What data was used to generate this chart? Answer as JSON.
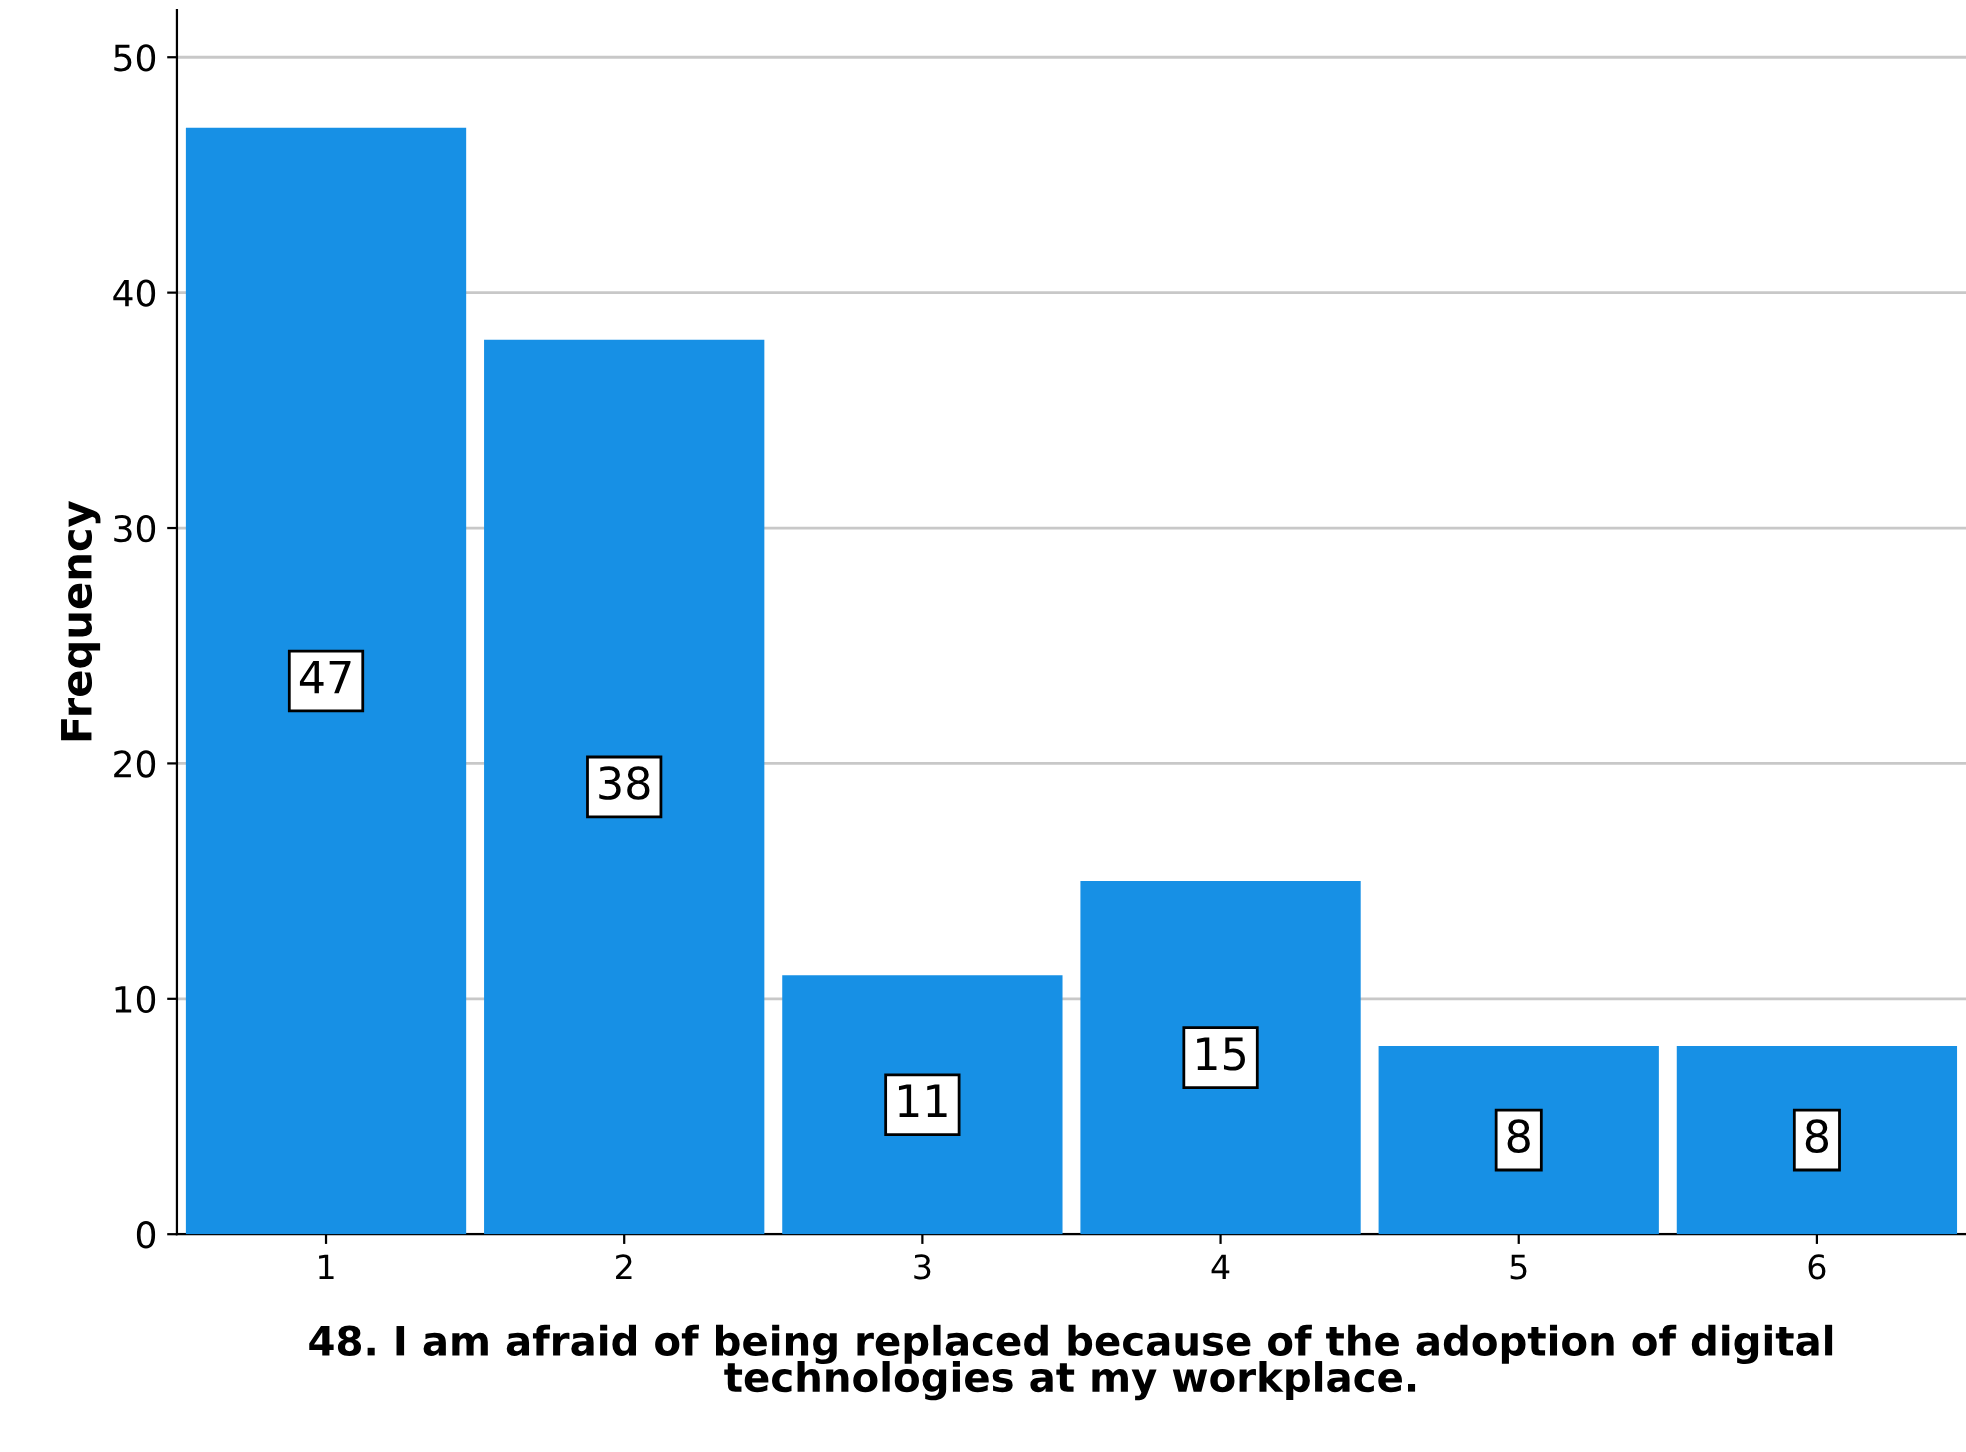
{
  "chart_data": {
    "type": "bar",
    "xlabel": "48. I am afraid of being replaced because of the adoption of digital technologies at my workplace.",
    "ylabel": "Frequency",
    "categories": [
      "1",
      "2",
      "3",
      "4",
      "5",
      "6"
    ],
    "values": [
      47,
      38,
      11,
      15,
      8,
      8
    ],
    "color": "#1790e5",
    "ylim": [
      0,
      52
    ],
    "yticks": [
      0,
      10,
      20,
      30,
      40,
      50
    ],
    "grid": "y",
    "data_labels": true,
    "legend": false
  }
}
